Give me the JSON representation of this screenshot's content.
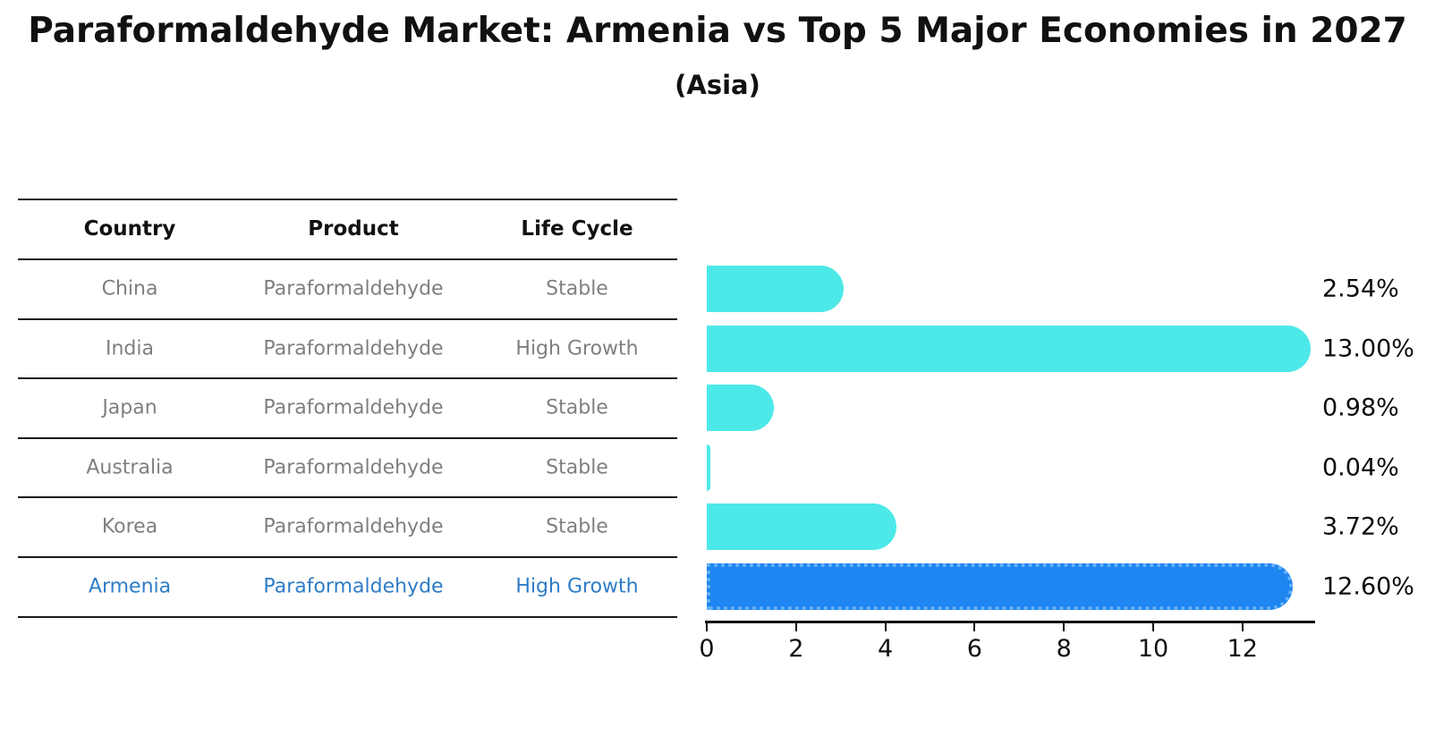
{
  "title": "Paraformaldehyde Market: Armenia vs Top 5 Major Economies in 2027",
  "subtitle": "(Asia)",
  "table": {
    "headers": {
      "country": "Country",
      "product": "Product",
      "life_cycle": "Life Cycle"
    },
    "rows": [
      {
        "country": "China",
        "product": "Paraformaldehyde",
        "life_cycle": "Stable",
        "highlight": false
      },
      {
        "country": "India",
        "product": "Paraformaldehyde",
        "life_cycle": "High Growth",
        "highlight": false
      },
      {
        "country": "Japan",
        "product": "Paraformaldehyde",
        "life_cycle": "Stable",
        "highlight": false
      },
      {
        "country": "Australia",
        "product": "Paraformaldehyde",
        "life_cycle": "Stable",
        "highlight": false
      },
      {
        "country": "Korea",
        "product": "Paraformaldehyde",
        "life_cycle": "Stable",
        "highlight": false
      },
      {
        "country": "Armenia",
        "product": "Paraformaldehyde",
        "life_cycle": "High Growth",
        "highlight": true
      }
    ]
  },
  "chart_data": {
    "type": "bar",
    "orientation": "horizontal",
    "categories": [
      "China",
      "India",
      "Japan",
      "Australia",
      "Korea",
      "Armenia"
    ],
    "values": [
      2.54,
      13.0,
      0.98,
      0.04,
      3.72,
      12.6
    ],
    "value_labels": [
      "2.54%",
      "13.00%",
      "0.98%",
      "0.04%",
      "3.72%",
      "12.60%"
    ],
    "x_ticks": [
      0,
      2,
      4,
      6,
      8,
      10,
      12
    ],
    "xlim": [
      0,
      13.5
    ],
    "grid": false,
    "legend": "none",
    "bar_color_default": "#4DE8E8",
    "bar_color_highlight": "#1E86F0",
    "highlight_index": 5,
    "highlight_text_color": "#2E7CC7"
  }
}
